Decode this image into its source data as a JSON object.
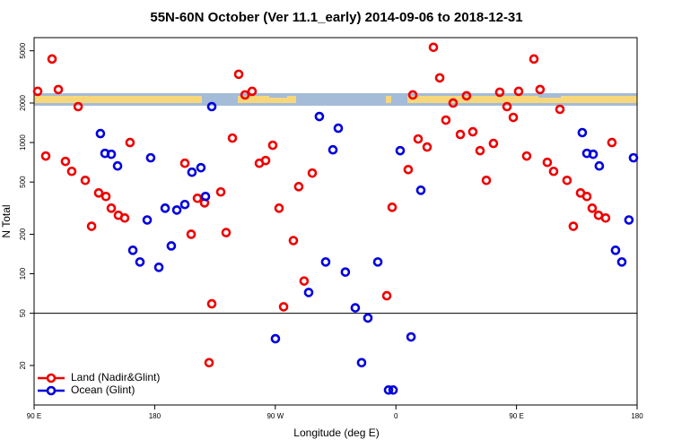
{
  "chart_data": {
    "type": "scatter",
    "title": "55N-60N October (Ver 11.1_early)   2014-09-06 to 2018-12-31",
    "x_label": "Longitude (deg E)",
    "y_label": "N Total",
    "xlim": [
      90,
      540
    ],
    "xticks": [
      {
        "value": 90,
        "label": "90 E"
      },
      180,
      {
        "value": 270,
        "label": "90 W"
      },
      {
        "value": 360,
        "label": "0"
      },
      {
        "value": 450,
        "label": "90 E"
      },
      {
        "value": 540,
        "label": "180"
      }
    ],
    "ylim": [
      10,
      6300
    ],
    "yticks": [
      20,
      50,
      100,
      200,
      500,
      1000,
      2000,
      5000
    ],
    "log_y": true,
    "hline": 50,
    "legend": "bottom-left",
    "series": [
      {
        "name": "Land (Nadir&Glint)",
        "color": "#ee0000",
        "x": [
          92.7,
          98.7,
          103.4,
          108.1,
          113.4,
          118.1,
          122.9,
          128.2,
          132.9,
          138.2,
          143.6,
          147.6,
          152.9,
          157.6,
          161.6,
          202.5,
          207.2,
          211.9,
          217.2,
          220.6,
          222.6,
          229.3,
          233.3,
          238,
          242.7,
          247.4,
          252.7,
          258.1,
          262.8,
          268.1,
          272.8,
          276.2,
          283.5,
          287.5,
          291.5,
          297.6,
          353.2,
          357.2,
          369.2,
          372.6,
          376.6,
          383.3,
          388,
          392.7,
          397.3,
          402.7,
          408.1,
          412.7,
          417.4,
          422.8,
          427.5,
          432.8,
          437.5,
          442.9,
          447.6,
          451.6,
          457.6,
          463,
          467.6,
          473,
          477.7,
          482.4,
          487.7,
          492.4,
          497.8,
          502.5,
          506.5,
          511.2,
          516.5,
          521.2
        ],
        "values": [
          2455,
          789,
          4330,
          2535,
          718,
          603,
          1878,
          515,
          230,
          413,
          388,
          316,
          279,
          266,
          1000,
          695,
          200,
          376,
          347,
          21,
          59,
          420,
          206,
          1081,
          3313,
          2305,
          2455,
          695,
          729,
          953,
          316,
          56,
          179,
          461,
          88,
          585,
          68,
          321,
          622,
          2305,
          1064,
          924,
          5316,
          3110,
          1482,
          2000,
          1152,
          2270,
          1207,
          867,
          515,
          984,
          2416,
          1878,
          1554,
          2455,
          789,
          4330,
          2535,
          706,
          603,
          1791,
          515,
          230,
          413,
          388,
          316,
          279,
          266,
          1000
        ]
      },
      {
        "name": "Ocean (Glint)",
        "color": "#0000dd",
        "x": [
          139.5,
          142.9,
          147.6,
          152.3,
          163.7,
          169,
          174.4,
          177,
          183.1,
          187.8,
          192.4,
          196.5,
          202.5,
          207.8,
          214.5,
          217.9,
          222.6,
          270.1,
          294.9,
          302.9,
          307.6,
          313,
          317,
          322.3,
          329.7,
          334.4,
          339.1,
          346.5,
          354.5,
          357.9,
          363.2,
          371.3,
          378.6,
          499.1,
          502.5,
          507.2,
          511.8,
          523.9,
          528.6,
          533.9,
          537.3
        ],
        "values": [
          1170,
          827,
          814,
          663,
          151,
          123,
          257,
          765,
          112,
          316,
          163,
          306,
          337,
          594,
          643,
          388,
          1878,
          32,
          72,
          1579,
          123,
          880,
          1286,
          103,
          55,
          21,
          46,
          123,
          13,
          13,
          867,
          33,
          433,
          1190,
          827,
          814,
          663,
          151,
          123,
          257,
          765
        ]
      }
    ]
  }
}
